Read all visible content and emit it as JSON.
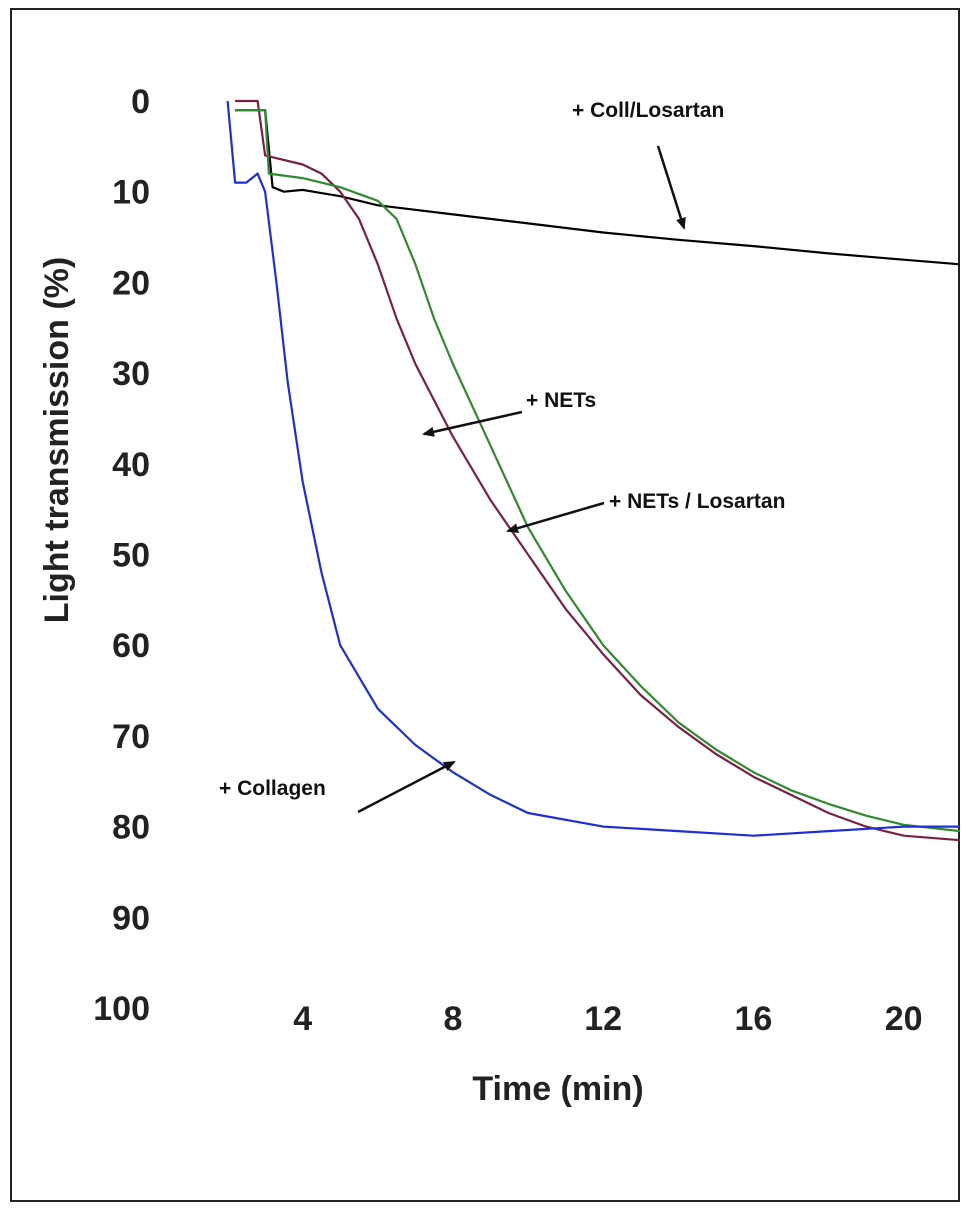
{
  "chart_data": {
    "type": "line",
    "xlabel": "Time (min)",
    "ylabel": "Light transmission (%)",
    "xlim": [
      1.0,
      21.5
    ],
    "ylim": [
      0,
      100
    ],
    "y_inverted": true,
    "grid": false,
    "legend": "none (series identified by arrow annotations)",
    "x_ticks": [
      "4",
      "8",
      "12",
      "16",
      "20"
    ],
    "x_tick_values": [
      4,
      8,
      12,
      16,
      20
    ],
    "y_ticks": [
      "0",
      "10",
      "20",
      "30",
      "40",
      "50",
      "60",
      "70",
      "80",
      "90",
      "100"
    ],
    "y_tick_values": [
      0,
      10,
      20,
      30,
      40,
      50,
      60,
      70,
      80,
      90,
      100
    ],
    "series": [
      {
        "name": "+ Coll/Losartan",
        "color": "#000000",
        "x": [
          2.2,
          2.6,
          3.0,
          3.2,
          3.5,
          4.0,
          5.0,
          6.0,
          7.0,
          8.0,
          10.0,
          12.0,
          14.0,
          16.0,
          18.0,
          20.0,
          21.5
        ],
        "y": [
          1.0,
          1.0,
          1.0,
          9.5,
          10.0,
          9.8,
          10.5,
          11.5,
          12.0,
          12.5,
          13.5,
          14.5,
          15.3,
          16.0,
          16.8,
          17.5,
          18.0
        ]
      },
      {
        "name": "+ NETs",
        "color": "#7b1f45",
        "x": [
          2.2,
          2.6,
          2.8,
          3.0,
          4.0,
          4.5,
          5.0,
          5.5,
          6.0,
          6.5,
          7.0,
          7.5,
          8.0,
          9.0,
          10.0,
          11.0,
          12.0,
          13.0,
          14.0,
          15.0,
          16.0,
          17.0,
          18.0,
          19.0,
          20.0,
          21.5
        ],
        "y": [
          0.0,
          0.0,
          0.0,
          6.0,
          7.0,
          8.0,
          10.0,
          13.0,
          18.0,
          24.0,
          29.0,
          33.0,
          37.0,
          44.0,
          50.0,
          56.0,
          61.0,
          65.5,
          69.0,
          72.0,
          74.5,
          76.5,
          78.5,
          80.0,
          81.0,
          81.5
        ]
      },
      {
        "name": "+ NETs / Losartan",
        "color": "#2e8b2e",
        "x": [
          2.2,
          2.6,
          3.0,
          3.1,
          4.0,
          5.0,
          6.0,
          6.5,
          7.0,
          7.5,
          8.0,
          9.0,
          10.0,
          11.0,
          12.0,
          13.0,
          14.0,
          15.0,
          16.0,
          17.0,
          18.0,
          19.0,
          20.0,
          21.5
        ],
        "y": [
          1.0,
          1.0,
          1.0,
          8.0,
          8.5,
          9.5,
          11.0,
          13.0,
          18.0,
          24.0,
          29.0,
          38.0,
          47.0,
          54.0,
          60.0,
          64.5,
          68.5,
          71.5,
          74.0,
          76.0,
          77.5,
          78.8,
          79.8,
          80.5
        ]
      },
      {
        "name": "+ Collagen",
        "color": "#1f2fd6",
        "x": [
          2.0,
          2.2,
          2.5,
          2.8,
          3.0,
          3.3,
          3.6,
          4.0,
          4.5,
          5.0,
          6.0,
          7.0,
          8.0,
          9.0,
          10.0,
          12.0,
          14.0,
          16.0,
          18.0,
          20.0,
          21.5
        ],
        "y": [
          0.0,
          9.0,
          9.0,
          8.0,
          10.0,
          20.0,
          31.0,
          42.0,
          52.0,
          60.0,
          67.0,
          71.0,
          74.0,
          76.5,
          78.5,
          80.0,
          80.5,
          81.0,
          80.5,
          80.0,
          80.0
        ]
      }
    ],
    "annotations": [
      {
        "text": "+  Coll/Losartan",
        "series": "+ Coll/Losartan"
      },
      {
        "text": "+ NETs",
        "series": "+ NETs"
      },
      {
        "text": "+ NETs / Losartan",
        "series": "+ NETs / Losartan"
      },
      {
        "text": "+ Collagen",
        "series": "+ Collagen"
      }
    ]
  }
}
